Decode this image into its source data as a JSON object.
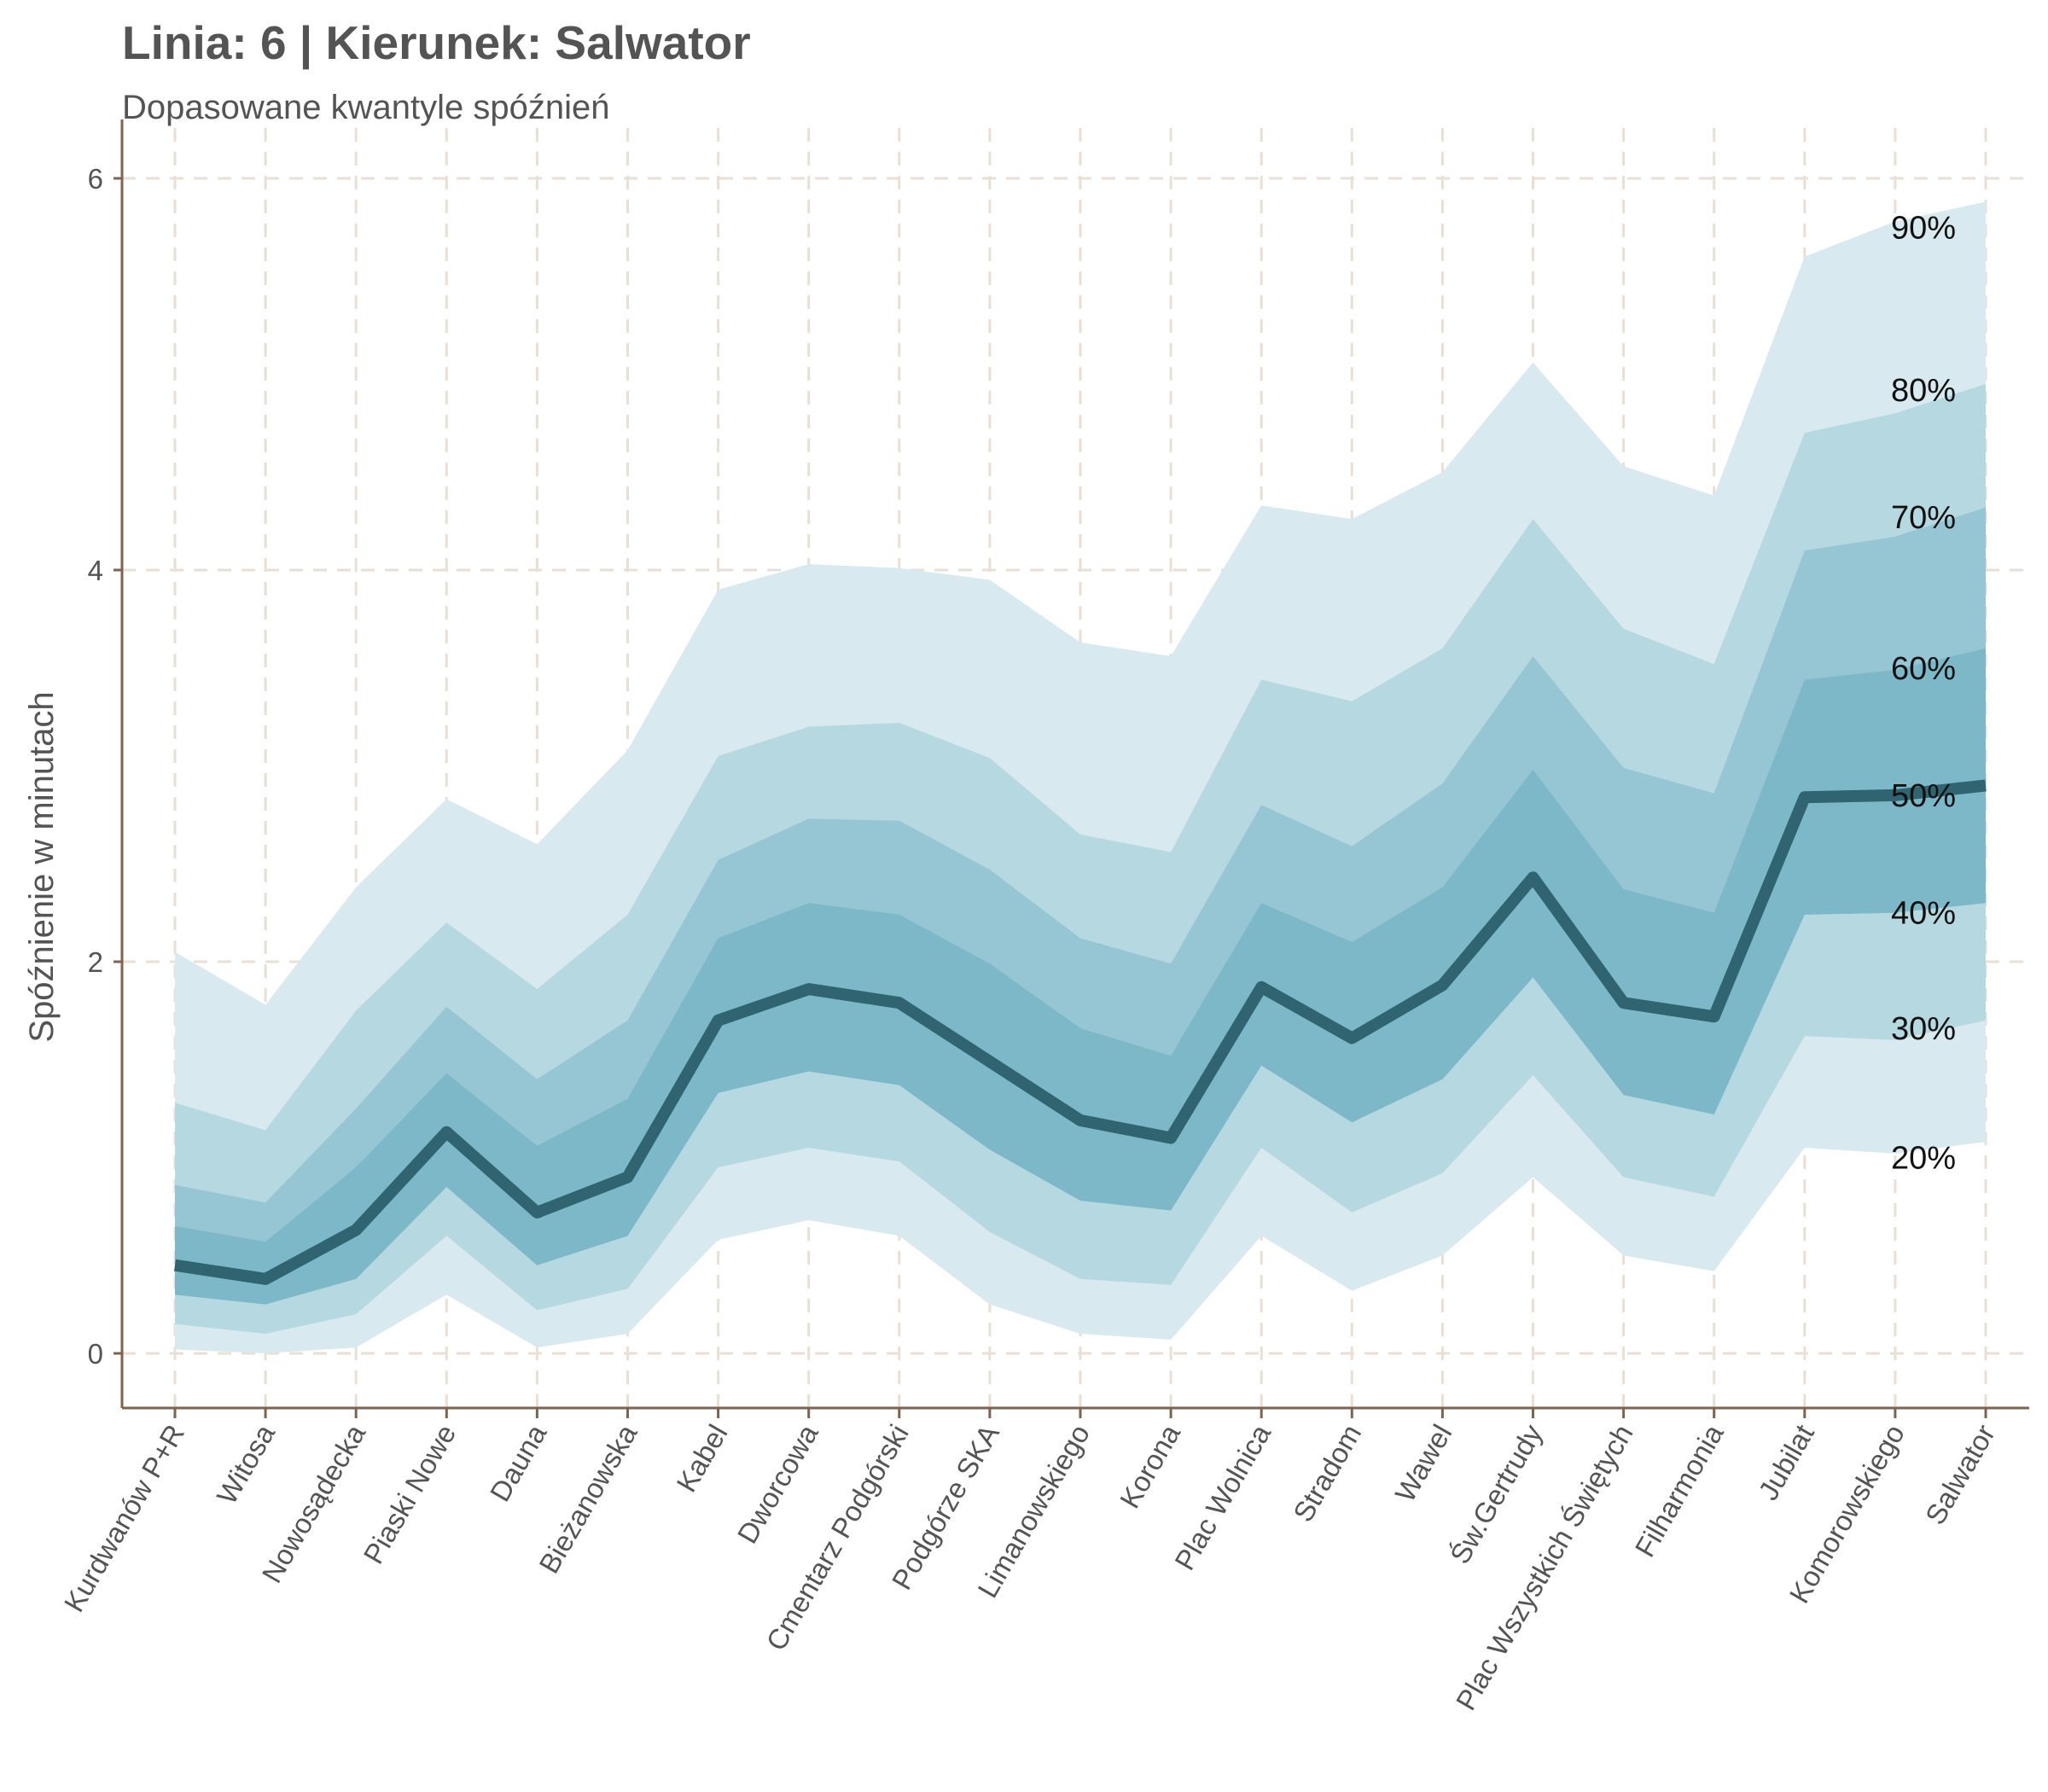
{
  "chart_data": {
    "type": "area",
    "title": "Linia: 6 | Kierunek: Salwator",
    "subtitle": "Dopasowane kwantyle spóźnień",
    "xlabel": "",
    "ylabel": "Spóźnienie w minutach",
    "ylim": [
      -0.3,
      6.15
    ],
    "yticks": [
      0,
      2,
      4,
      6
    ],
    "grid": true,
    "categories": [
      "Kurdwanów P+R",
      "Witosa",
      "Nowosądecka",
      "Piaski Nowe",
      "Dauna",
      "Bieżanowska",
      "Kabel",
      "Dworcowa",
      "Cmentarz Podgórski",
      "Podgórze SKA",
      "Limanowskiego",
      "Korona",
      "Plac Wolnica",
      "Stradom",
      "Wawel",
      "Św.Gertrudy",
      "Plac Wszystkich Świętych",
      "Filharmonia",
      "Jubilat",
      "Komorowskiego",
      "Salwator"
    ],
    "bands": [
      {
        "label": "90%",
        "lower": [
          0.02,
          0.0,
          0.03,
          0.3,
          0.03,
          0.1,
          0.58,
          0.68,
          0.6,
          0.25,
          0.1,
          0.07,
          0.6,
          0.32,
          0.5,
          0.9,
          0.5,
          0.42,
          1.05,
          1.02,
          1.08
        ],
        "upper": [
          2.05,
          1.78,
          2.38,
          2.83,
          2.6,
          3.08,
          3.9,
          4.03,
          4.01,
          3.95,
          3.63,
          3.56,
          4.33,
          4.26,
          4.5,
          5.06,
          4.53,
          4.38,
          5.6,
          5.78,
          5.88
        ]
      },
      {
        "label": "80%",
        "lower": [
          0.15,
          0.1,
          0.2,
          0.6,
          0.22,
          0.33,
          0.95,
          1.05,
          0.98,
          0.62,
          0.38,
          0.35,
          1.05,
          0.72,
          0.92,
          1.42,
          0.9,
          0.8,
          1.62,
          1.6,
          1.7
        ],
        "upper": [
          1.28,
          1.14,
          1.75,
          2.2,
          1.86,
          2.24,
          3.05,
          3.2,
          3.22,
          3.04,
          2.65,
          2.56,
          3.44,
          3.33,
          3.6,
          4.26,
          3.7,
          3.52,
          4.7,
          4.8,
          4.95
        ]
      },
      {
        "label": "70%",
        "lower": [
          0.3,
          0.25,
          0.38,
          0.85,
          0.45,
          0.6,
          1.33,
          1.44,
          1.37,
          1.04,
          0.78,
          0.73,
          1.47,
          1.18,
          1.4,
          1.92,
          1.32,
          1.22,
          2.24,
          2.25,
          2.3
        ],
        "upper": [
          0.86,
          0.77,
          1.25,
          1.77,
          1.4,
          1.7,
          2.52,
          2.73,
          2.72,
          2.47,
          2.12,
          1.99,
          2.8,
          2.59,
          2.91,
          3.56,
          2.99,
          2.86,
          4.1,
          4.17,
          4.32
        ]
      },
      {
        "label": "60%",
        "lower": [
          0.3,
          0.25,
          0.38,
          0.85,
          0.45,
          0.6,
          1.33,
          1.44,
          1.37,
          1.04,
          0.78,
          0.73,
          1.47,
          1.18,
          1.4,
          1.92,
          1.32,
          1.22,
          2.24,
          2.25,
          2.3
        ],
        "upper": [
          0.65,
          0.57,
          0.95,
          1.43,
          1.06,
          1.3,
          2.12,
          2.3,
          2.24,
          1.99,
          1.66,
          1.52,
          2.3,
          2.1,
          2.38,
          2.98,
          2.37,
          2.25,
          3.44,
          3.49,
          3.6
        ]
      }
    ],
    "median": {
      "label": "50%",
      "values": [
        0.45,
        0.38,
        0.63,
        1.13,
        0.72,
        0.9,
        1.7,
        1.86,
        1.79,
        1.49,
        1.19,
        1.1,
        1.87,
        1.61,
        1.88,
        2.43,
        1.79,
        1.72,
        2.84,
        2.85,
        2.9
      ]
    },
    "right_labels": [
      {
        "text": "90%",
        "y": 5.75
      },
      {
        "text": "80%",
        "y": 4.92
      },
      {
        "text": "70%",
        "y": 4.27
      },
      {
        "text": "60%",
        "y": 3.5
      },
      {
        "text": "50%",
        "y": 2.85
      },
      {
        "text": "40%",
        "y": 2.25
      },
      {
        "text": "30%",
        "y": 1.66
      },
      {
        "text": "20%",
        "y": 1.0
      }
    ],
    "colors": {
      "band_90": "#d8e9ef",
      "band_80": "#b6d8e1",
      "band_70": "#96c5d3",
      "band_60": "#7db8c9",
      "median": "#2f6470",
      "grid": "#e9dfd4",
      "axis": "#7d6450"
    }
  }
}
